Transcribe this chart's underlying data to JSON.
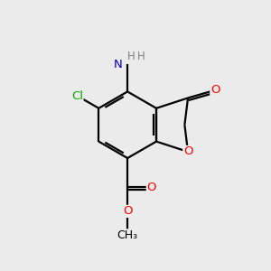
{
  "background_color": "#ebebeb",
  "bond_color": "#000000",
  "atom_colors": {
    "O": "#ff0000",
    "N": "#0000cd",
    "Cl": "#00aa00",
    "C": "#000000",
    "H": "#808080"
  },
  "figsize": [
    3.0,
    3.0
  ],
  "dpi": 100,
  "bond_lw": 1.6
}
